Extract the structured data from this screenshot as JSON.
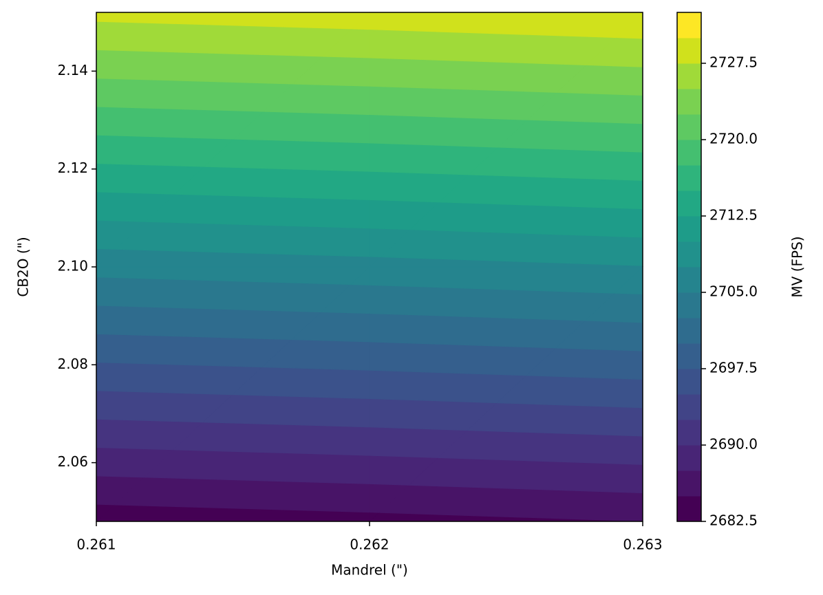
{
  "chart_data": {
    "type": "contourf",
    "x": [
      0.261,
      0.262,
      0.263
    ],
    "y": [
      2.048,
      2.1,
      2.152
    ],
    "z": [
      [
        2683.5,
        2684.2,
        2685.0
      ],
      [
        2705.9,
        2706.6,
        2707.4
      ],
      [
        2728.3,
        2729.0,
        2729.8
      ]
    ],
    "levels": [
      2682.5,
      2685,
      2687.5,
      2690,
      2692.5,
      2695,
      2697.5,
      2700,
      2702.5,
      2705,
      2707.5,
      2710,
      2712.5,
      2715,
      2717.5,
      2720,
      2722.5,
      2725,
      2727.5,
      2730,
      2732.5
    ],
    "colors": [
      "#440154",
      "#481467",
      "#482576",
      "#463480",
      "#414487",
      "#3b528b",
      "#355f8d",
      "#2f6c8e",
      "#2a788e",
      "#25848e",
      "#21918c",
      "#1e9c89",
      "#22a884",
      "#2fb47c",
      "#44bf70",
      "#5ec962",
      "#7ad151",
      "#a0da39",
      "#d0e11c",
      "#fde725"
    ],
    "xlim": [
      0.261,
      0.263
    ],
    "ylim": [
      2.048,
      2.152
    ],
    "xticks": [
      0.261,
      0.262,
      0.263
    ],
    "yticks": [
      2.06,
      2.08,
      {
        "value": 2.1,
        "label": "2.10"
      },
      2.12,
      2.14
    ],
    "clim": [
      2682.5,
      2732.5
    ],
    "cticks": [
      2682.5,
      {
        "value": 2690,
        "label": "2690.0"
      },
      2697.5,
      {
        "value": 2705,
        "label": "2705.0"
      },
      2712.5,
      {
        "value": 2720,
        "label": "2720.0"
      },
      2727.5
    ],
    "x_label": "Mandrel (\")",
    "y_label": "CB2O (\")",
    "colorbar_label": "MV (FPS)"
  }
}
